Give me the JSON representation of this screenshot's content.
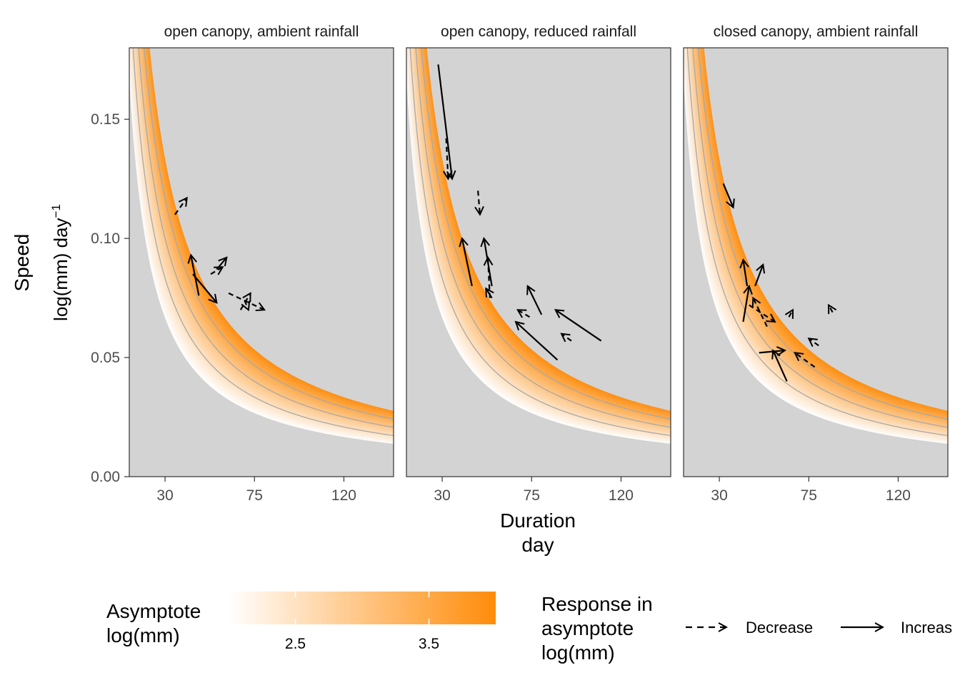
{
  "chart_data": {
    "type": "heatmap",
    "description_free": true,
    "ylabel": "Speed",
    "ylabel_units": "log(mm) day",
    "ylabel_units_sup": "−1",
    "xlabel": "Duration",
    "xlabel_units": "day",
    "xlim": [
      12,
      145
    ],
    "ylim": [
      0,
      0.18
    ],
    "x_ticks": [
      30,
      75,
      120
    ],
    "y_ticks": [
      0.0,
      0.05,
      0.1,
      0.15
    ],
    "y_tick_labels": [
      "0.00",
      "0.05",
      "0.10",
      "0.15"
    ],
    "asymptote_band": [
      2.0,
      4.0
    ],
    "contour_asymptotes": [
      2.5,
      3.0,
      3.5
    ],
    "panels": [
      {
        "title": "open canopy, ambient rainfall",
        "arrows": [
          {
            "x0": 35,
            "y0": 0.11,
            "x1": 41,
            "y1": 0.117,
            "response": "Decrease"
          },
          {
            "x0": 47,
            "y0": 0.076,
            "x1": 43,
            "y1": 0.093,
            "response": "Increase"
          },
          {
            "x0": 44,
            "y0": 0.085,
            "x1": 56,
            "y1": 0.073,
            "response": "Increase"
          },
          {
            "x0": 56,
            "y0": 0.087,
            "x1": 61,
            "y1": 0.092,
            "response": "Increase"
          },
          {
            "x0": 53,
            "y0": 0.085,
            "x1": 59,
            "y1": 0.088,
            "response": "Decrease"
          },
          {
            "x0": 62,
            "y0": 0.077,
            "x1": 80,
            "y1": 0.07,
            "response": "Decrease"
          },
          {
            "x0": 68,
            "y0": 0.07,
            "x1": 73,
            "y1": 0.077,
            "response": "Decrease"
          },
          {
            "x0": 70,
            "y0": 0.074,
            "x1": 72,
            "y1": 0.07,
            "response": "Decrease"
          }
        ]
      },
      {
        "title": "open canopy, reduced rainfall",
        "arrows": [
          {
            "x0": 28,
            "y0": 0.173,
            "x1": 35,
            "y1": 0.125,
            "response": "Increase"
          },
          {
            "x0": 32,
            "y0": 0.142,
            "x1": 33,
            "y1": 0.125,
            "response": "Decrease"
          },
          {
            "x0": 48,
            "y0": 0.12,
            "x1": 49,
            "y1": 0.11,
            "response": "Decrease"
          },
          {
            "x0": 45,
            "y0": 0.08,
            "x1": 40,
            "y1": 0.1,
            "response": "Increase"
          },
          {
            "x0": 55,
            "y0": 0.08,
            "x1": 51,
            "y1": 0.1,
            "response": "Increase"
          },
          {
            "x0": 54,
            "y0": 0.075,
            "x1": 53,
            "y1": 0.092,
            "response": "Decrease"
          },
          {
            "x0": 55,
            "y0": 0.075,
            "x1": 52,
            "y1": 0.079,
            "response": "Increase"
          },
          {
            "x0": 80,
            "y0": 0.068,
            "x1": 73,
            "y1": 0.08,
            "response": "Increase"
          },
          {
            "x0": 74,
            "y0": 0.067,
            "x1": 68,
            "y1": 0.07,
            "response": "Decrease"
          },
          {
            "x0": 88,
            "y0": 0.049,
            "x1": 67,
            "y1": 0.065,
            "response": "Increase"
          },
          {
            "x0": 110,
            "y0": 0.057,
            "x1": 87,
            "y1": 0.07,
            "response": "Increase"
          },
          {
            "x0": 95,
            "y0": 0.057,
            "x1": 90,
            "y1": 0.06,
            "response": "Decrease"
          }
        ]
      },
      {
        "title": "closed canopy, ambient rainfall",
        "arrows": [
          {
            "x0": 32,
            "y0": 0.123,
            "x1": 37,
            "y1": 0.113,
            "response": "Increase"
          },
          {
            "x0": 44,
            "y0": 0.08,
            "x1": 42,
            "y1": 0.091,
            "response": "Increase"
          },
          {
            "x0": 42,
            "y0": 0.065,
            "x1": 45,
            "y1": 0.08,
            "response": "Increase"
          },
          {
            "x0": 48,
            "y0": 0.08,
            "x1": 52,
            "y1": 0.089,
            "response": "Increase"
          },
          {
            "x0": 45,
            "y0": 0.072,
            "x1": 58,
            "y1": 0.065,
            "response": "Decrease"
          },
          {
            "x0": 54,
            "y0": 0.063,
            "x1": 47,
            "y1": 0.075,
            "response": "Decrease"
          },
          {
            "x0": 65,
            "y0": 0.067,
            "x1": 67,
            "y1": 0.07,
            "response": "Decrease"
          },
          {
            "x0": 87,
            "y0": 0.069,
            "x1": 85,
            "y1": 0.072,
            "response": "Decrease"
          },
          {
            "x0": 64,
            "y0": 0.04,
            "x1": 57,
            "y1": 0.053,
            "response": "Increase"
          },
          {
            "x0": 50,
            "y0": 0.052,
            "x1": 63,
            "y1": 0.053,
            "response": "Increase"
          },
          {
            "x0": 78,
            "y0": 0.046,
            "x1": 68,
            "y1": 0.052,
            "response": "Decrease"
          },
          {
            "x0": 80,
            "y0": 0.055,
            "x1": 75,
            "y1": 0.058,
            "response": "Decrease"
          }
        ]
      }
    ]
  },
  "legend_fill": {
    "title_line1": "Asymptote",
    "title_line2": "log(mm)",
    "color_low": "#ffffff",
    "color_high": "#ff8c0a",
    "range": [
      2.0,
      4.0
    ],
    "tick_values": [
      2.5,
      3.5
    ],
    "tick_labels": [
      "2.5",
      "3.5"
    ]
  },
  "legend_arrows": {
    "title_line1": "Response in",
    "title_line2": "asymptote",
    "title_line3": "log(mm)",
    "decrease_label": "Decrease",
    "increase_label": "Increas"
  },
  "colors": {
    "panel_background": "#d3d3d3",
    "contour": "#a8a8a8",
    "arrow": "#000000",
    "gradient_low": "#ffffff",
    "gradient_high": "#ff8c0a"
  }
}
